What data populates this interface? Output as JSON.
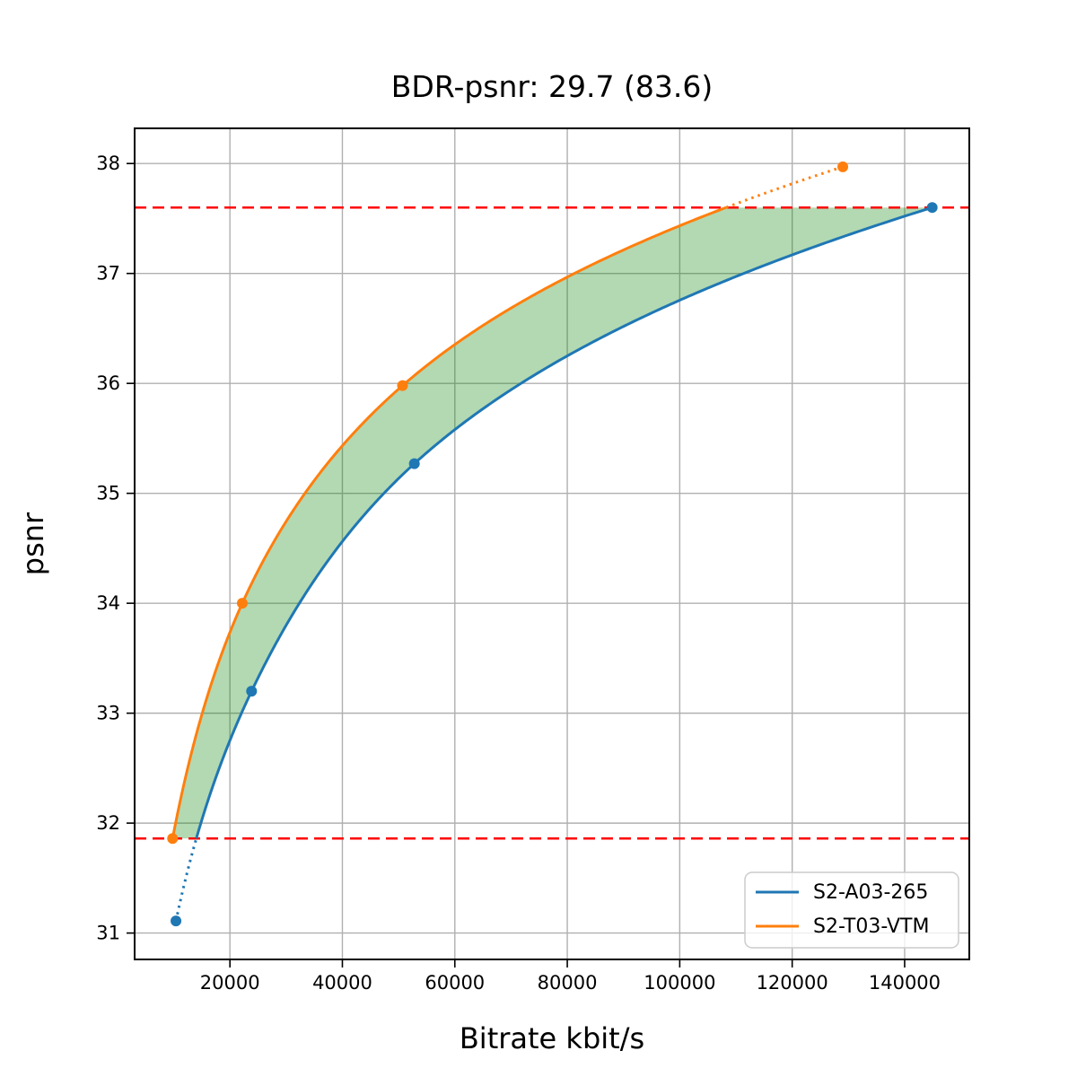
{
  "figure": {
    "title": "BDR-psnr: 29.7 (83.6)"
  },
  "chart_data": {
    "type": "line",
    "title": "BDR-psnr: 29.7 (83.6)",
    "xlabel": "Bitrate kbit/s",
    "ylabel": "psnr",
    "xlim": [
      3050,
      151500
    ],
    "ylim": [
      30.76,
      38.32
    ],
    "x_ticks": [
      20000,
      40000,
      60000,
      80000,
      100000,
      120000,
      140000
    ],
    "y_ticks": [
      31,
      32,
      33,
      34,
      35,
      36,
      37,
      38
    ],
    "grid": true,
    "grid_color": "#b0b0b0",
    "legend_position": "lower right",
    "series": [
      {
        "name": "S2-A03-265",
        "color": "#1f77b4",
        "marker": "circle",
        "points": [
          [
            10400,
            31.11
          ],
          [
            23850,
            33.2
          ],
          [
            52800,
            35.27
          ],
          [
            144900,
            37.6
          ]
        ]
      },
      {
        "name": "S2-T03-VTM",
        "color": "#ff7f0e",
        "marker": "circle",
        "points": [
          [
            9800,
            31.86
          ],
          [
            22200,
            34.0
          ],
          [
            50700,
            35.98
          ],
          [
            129000,
            37.97
          ]
        ]
      }
    ],
    "bd_overlap_band": {
      "psnr_low": 31.86,
      "psnr_high": 37.6,
      "hline_color": "#ff0000",
      "hline_style": "dashed",
      "fill_color": "#008000",
      "fill_opacity": 0.3
    },
    "interpolation": "monotone-cubic-in-log-bitrate",
    "out_of_band_line_style": "dotted"
  }
}
